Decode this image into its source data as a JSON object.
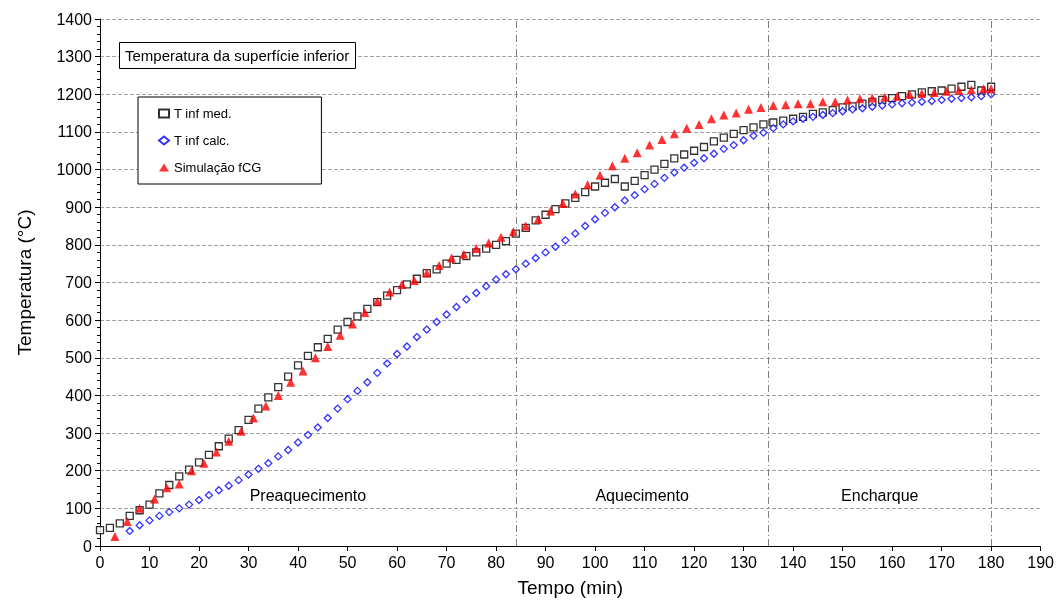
{
  "chart_data": {
    "type": "scatter",
    "title": "Temperatura da superfície inferior",
    "xlabel": "Tempo (min)",
    "ylabel": "Temperatura (°C)",
    "xlim": [
      0,
      190
    ],
    "xticks": [
      0,
      10,
      20,
      30,
      40,
      50,
      60,
      70,
      80,
      90,
      100,
      110,
      120,
      130,
      140,
      150,
      160,
      170,
      180,
      190
    ],
    "ylim": [
      0,
      1400
    ],
    "yticks": [
      0,
      100,
      200,
      300,
      400,
      500,
      600,
      700,
      800,
      900,
      1000,
      1100,
      1200,
      1300,
      1400
    ],
    "grid": "y",
    "legend": "top left",
    "series": [
      {
        "name": "T inf med.",
        "color": "#000000",
        "marker": "square",
        "x": [
          0,
          2,
          4,
          6,
          8,
          10,
          12,
          14,
          16,
          18,
          20,
          22,
          24,
          26,
          28,
          30,
          32,
          34,
          36,
          38,
          40,
          42,
          44,
          46,
          48,
          50,
          52,
          54,
          56,
          58,
          60,
          62,
          64,
          66,
          68,
          70,
          72,
          74,
          76,
          78,
          80,
          82,
          84,
          86,
          88,
          90,
          92,
          94,
          96,
          98,
          100,
          102,
          104,
          106,
          108,
          110,
          112,
          114,
          116,
          118,
          120,
          122,
          124,
          126,
          128,
          130,
          132,
          134,
          136,
          138,
          140,
          142,
          144,
          146,
          148,
          150,
          152,
          154,
          156,
          158,
          160,
          162,
          164,
          166,
          168,
          170,
          172,
          174,
          176,
          178,
          180
        ],
        "values": [
          42,
          48,
          60,
          80,
          95,
          110,
          140,
          162,
          185,
          203,
          222,
          242,
          265,
          285,
          308,
          335,
          365,
          395,
          422,
          450,
          480,
          505,
          528,
          550,
          575,
          595,
          610,
          630,
          648,
          665,
          680,
          695,
          710,
          725,
          735,
          750,
          760,
          770,
          780,
          790,
          800,
          810,
          830,
          845,
          865,
          880,
          895,
          910,
          925,
          940,
          955,
          965,
          975,
          955,
          970,
          985,
          1000,
          1015,
          1030,
          1040,
          1050,
          1060,
          1075,
          1085,
          1095,
          1105,
          1112,
          1120,
          1125,
          1130,
          1135,
          1140,
          1148,
          1152,
          1158,
          1165,
          1168,
          1175,
          1180,
          1185,
          1190,
          1195,
          1200,
          1205,
          1208,
          1210,
          1215,
          1220,
          1225,
          1210,
          1220
        ]
      },
      {
        "name": "T inf calc.",
        "color": "#0000ff",
        "marker": "diamond",
        "x": [
          6,
          8,
          10,
          12,
          14,
          16,
          18,
          20,
          22,
          24,
          26,
          28,
          30,
          32,
          34,
          36,
          38,
          40,
          42,
          44,
          46,
          48,
          50,
          52,
          54,
          56,
          58,
          60,
          62,
          64,
          66,
          68,
          70,
          72,
          74,
          76,
          78,
          80,
          82,
          84,
          86,
          88,
          90,
          92,
          94,
          96,
          98,
          100,
          102,
          104,
          106,
          108,
          110,
          112,
          114,
          116,
          118,
          120,
          122,
          124,
          126,
          128,
          130,
          132,
          134,
          136,
          138,
          140,
          142,
          144,
          146,
          148,
          150,
          152,
          154,
          156,
          158,
          160,
          162,
          164,
          166,
          168,
          170,
          172,
          174,
          176,
          178,
          180
        ],
        "values": [
          40,
          55,
          68,
          80,
          90,
          100,
          110,
          122,
          135,
          148,
          160,
          175,
          190,
          205,
          220,
          238,
          255,
          275,
          295,
          315,
          340,
          365,
          390,
          412,
          435,
          460,
          485,
          510,
          530,
          555,
          575,
          595,
          615,
          635,
          655,
          672,
          690,
          708,
          722,
          735,
          750,
          765,
          780,
          795,
          812,
          830,
          850,
          868,
          885,
          900,
          918,
          932,
          948,
          962,
          978,
          992,
          1005,
          1018,
          1030,
          1042,
          1055,
          1065,
          1078,
          1090,
          1098,
          1110,
          1120,
          1128,
          1135,
          1140,
          1145,
          1150,
          1155,
          1160,
          1163,
          1167,
          1170,
          1173,
          1176,
          1178,
          1180,
          1182,
          1185,
          1188,
          1190,
          1192,
          1195,
          1200
        ]
      },
      {
        "name": "Simulação fCG",
        "color": "#ff0000",
        "marker": "triangle",
        "x": [
          3,
          5.5,
          8,
          11,
          13.5,
          16,
          18.5,
          21,
          23.5,
          26,
          28.5,
          31,
          33.5,
          36,
          38.5,
          41,
          43.5,
          46,
          48.5,
          51,
          53.5,
          56,
          58.5,
          61,
          63.5,
          66,
          68.5,
          71,
          73.5,
          76,
          78.5,
          81,
          83.5,
          86,
          88.5,
          91,
          93.5,
          96,
          98.5,
          101,
          103.5,
          106,
          108.5,
          111,
          113.5,
          116,
          118.5,
          121,
          123.5,
          126,
          128.5,
          131,
          133.5,
          136,
          138.5,
          141,
          143.5,
          146,
          148.5,
          151,
          153.5,
          156,
          158.5,
          161,
          163.5,
          166,
          168.5,
          171,
          173.5,
          176,
          178.5,
          180
        ],
        "values": [
          25,
          65,
          100,
          125,
          155,
          165,
          200,
          220,
          250,
          278,
          305,
          340,
          372,
          400,
          435,
          465,
          500,
          530,
          560,
          590,
          620,
          650,
          675,
          695,
          705,
          725,
          745,
          765,
          775,
          790,
          805,
          820,
          835,
          850,
          868,
          890,
          910,
          935,
          960,
          985,
          1010,
          1030,
          1045,
          1065,
          1080,
          1095,
          1110,
          1120,
          1135,
          1145,
          1150,
          1160,
          1165,
          1170,
          1172,
          1175,
          1175,
          1180,
          1180,
          1185,
          1188,
          1190,
          1192,
          1195,
          1200,
          1202,
          1205,
          1208,
          1210,
          1212,
          1215,
          1215
        ]
      }
    ],
    "ref_lines": [
      {
        "axis": "x",
        "value": 84,
        "color": "#808080",
        "line_style": "dashed"
      },
      {
        "axis": "x",
        "value": 135,
        "color": "#808080",
        "line_style": "dashed"
      },
      {
        "axis": "x",
        "value": 180,
        "color": "#808080",
        "line_style": "dashed"
      }
    ],
    "annotations": [
      "Preaquecimento",
      "Aquecimento",
      "Encharque"
    ]
  }
}
